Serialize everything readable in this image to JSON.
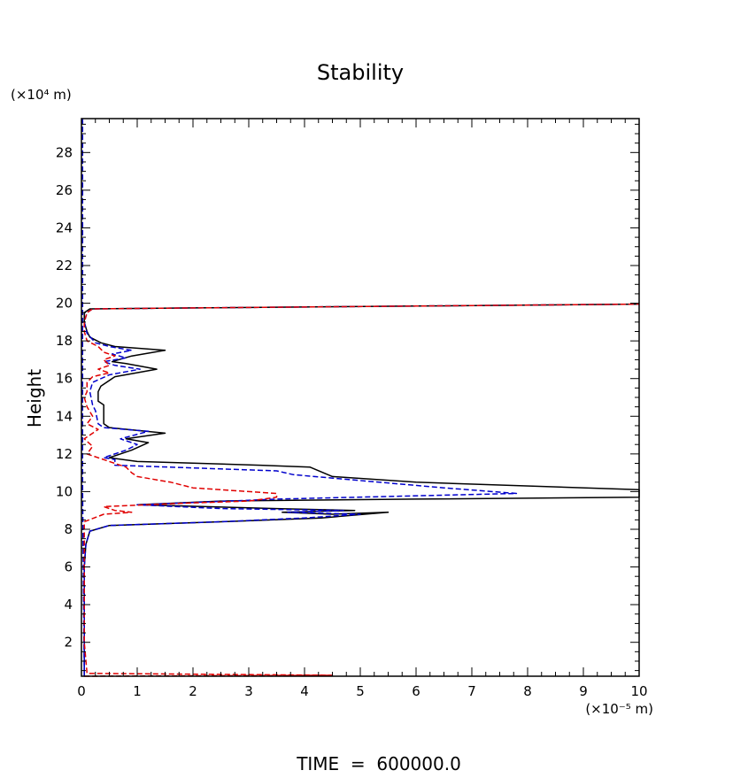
{
  "chart_data": {
    "type": "line",
    "title": "Stability",
    "xlabel": "(×10⁻⁵ m)",
    "ylabel": "Height",
    "y_unit_label": "(×10⁴ m)",
    "footer": "TIME  =  600000.0",
    "xlim": [
      0,
      10
    ],
    "ylim": [
      0.2,
      29.8
    ],
    "xticks": [
      0,
      1,
      2,
      3,
      4,
      5,
      6,
      7,
      8,
      9,
      10
    ],
    "yticks": [
      2,
      4,
      6,
      8,
      10,
      12,
      14,
      16,
      18,
      20,
      22,
      24,
      26,
      28
    ],
    "grid": false,
    "colors": {
      "black": "#000000",
      "blue": "#0000cc",
      "red": "#e00000"
    },
    "series": [
      {
        "color": "black",
        "dash": "solid",
        "points": [
          [
            0.05,
            0.2
          ],
          [
            0.05,
            3
          ],
          [
            0.05,
            6
          ],
          [
            0.08,
            7.2
          ],
          [
            0.15,
            7.9
          ],
          [
            0.5,
            8.2
          ],
          [
            2.5,
            8.4
          ],
          [
            4.3,
            8.6
          ],
          [
            5.5,
            8.9
          ],
          [
            4.5,
            8.8
          ],
          [
            3.6,
            8.9
          ],
          [
            4.9,
            9.0
          ],
          [
            3.5,
            9.1
          ],
          [
            1.0,
            9.3
          ],
          [
            2.5,
            9.5
          ],
          [
            6.0,
            9.6
          ],
          [
            10.0,
            9.7
          ],
          [
            10.0,
            10.1
          ],
          [
            6.0,
            10.5
          ],
          [
            4.5,
            10.8
          ],
          [
            4.1,
            11.3
          ],
          [
            3.2,
            11.4
          ],
          [
            1.0,
            11.6
          ],
          [
            0.5,
            11.8
          ],
          [
            0.9,
            12.2
          ],
          [
            1.2,
            12.6
          ],
          [
            0.8,
            12.8
          ],
          [
            1.5,
            13.1
          ],
          [
            0.5,
            13.4
          ],
          [
            0.4,
            13.6
          ],
          [
            0.4,
            14.3
          ],
          [
            0.4,
            14.6
          ],
          [
            0.3,
            14.8
          ],
          [
            0.3,
            15.3
          ],
          [
            0.35,
            15.6
          ],
          [
            0.6,
            16.1
          ],
          [
            1.35,
            16.5
          ],
          [
            0.8,
            16.8
          ],
          [
            0.55,
            16.9
          ],
          [
            0.9,
            17.2
          ],
          [
            1.5,
            17.5
          ],
          [
            0.6,
            17.7
          ],
          [
            0.35,
            17.9
          ],
          [
            0.15,
            18.2
          ],
          [
            0.1,
            18.5
          ],
          [
            0.05,
            19.0
          ],
          [
            0.05,
            19.5
          ],
          [
            0.15,
            19.7
          ],
          [
            2.0,
            19.75
          ],
          [
            6.0,
            19.85
          ],
          [
            10.0,
            19.95
          ]
        ]
      },
      {
        "color": "blue",
        "dash": "dashed",
        "points": [
          [
            0.02,
            29.8
          ],
          [
            0.02,
            20.5
          ],
          [
            0.02,
            10
          ],
          [
            0.05,
            0.2
          ],
          [
            0.05,
            3
          ],
          [
            0.05,
            6
          ],
          [
            0.08,
            7.2
          ],
          [
            0.15,
            7.9
          ],
          [
            0.5,
            8.2
          ],
          [
            2.5,
            8.4
          ],
          [
            4.0,
            8.6
          ],
          [
            5.0,
            8.8
          ],
          [
            3.7,
            8.9
          ],
          [
            4.7,
            9.0
          ],
          [
            2.5,
            9.1
          ],
          [
            1.0,
            9.3
          ],
          [
            3.5,
            9.6
          ],
          [
            7.8,
            9.9
          ],
          [
            6.5,
            10.2
          ],
          [
            3.8,
            10.9
          ],
          [
            3.5,
            11.1
          ],
          [
            0.6,
            11.4
          ],
          [
            0.6,
            11.7
          ],
          [
            0.4,
            11.8
          ],
          [
            0.8,
            12.2
          ],
          [
            1.0,
            12.5
          ],
          [
            0.7,
            12.8
          ],
          [
            1.2,
            13.2
          ],
          [
            0.4,
            13.4
          ],
          [
            0.3,
            13.6
          ],
          [
            0.25,
            14.3
          ],
          [
            0.2,
            14.6
          ],
          [
            0.15,
            15.3
          ],
          [
            0.2,
            15.8
          ],
          [
            0.5,
            16.2
          ],
          [
            1.05,
            16.5
          ],
          [
            0.6,
            16.7
          ],
          [
            0.4,
            16.9
          ],
          [
            0.8,
            17.1
          ],
          [
            0.55,
            17.3
          ],
          [
            0.9,
            17.5
          ],
          [
            0.5,
            17.7
          ],
          [
            0.25,
            17.9
          ],
          [
            0.1,
            18.4
          ],
          [
            0.05,
            19.0
          ],
          [
            0.1,
            19.5
          ],
          [
            0.2,
            19.7
          ],
          [
            2.0,
            19.75
          ],
          [
            6.0,
            19.85
          ],
          [
            10.0,
            19.95
          ]
        ]
      },
      {
        "color": "red",
        "dash": "dashed",
        "points": [
          [
            0.05,
            0.2
          ],
          [
            4.5,
            0.25
          ],
          [
            0.1,
            0.35
          ],
          [
            0.05,
            2
          ],
          [
            0.05,
            5
          ],
          [
            0.05,
            7
          ],
          [
            0.05,
            8.4
          ],
          [
            0.4,
            8.8
          ],
          [
            0.9,
            8.9
          ],
          [
            0.6,
            9.0
          ],
          [
            0.4,
            9.2
          ],
          [
            2.0,
            9.4
          ],
          [
            3.0,
            9.5
          ],
          [
            3.5,
            9.7
          ],
          [
            3.5,
            9.9
          ],
          [
            2.0,
            10.2
          ],
          [
            1.6,
            10.5
          ],
          [
            1.0,
            10.8
          ],
          [
            0.9,
            11.0
          ],
          [
            0.8,
            11.3
          ],
          [
            0.5,
            11.6
          ],
          [
            0.1,
            12.0
          ],
          [
            0.2,
            12.4
          ],
          [
            0.05,
            12.8
          ],
          [
            0.3,
            13.3
          ],
          [
            0.1,
            13.6
          ],
          [
            0.2,
            14.0
          ],
          [
            0.1,
            14.5
          ],
          [
            0.05,
            15.0
          ],
          [
            0.1,
            15.3
          ],
          [
            0.1,
            15.8
          ],
          [
            0.2,
            16.1
          ],
          [
            0.5,
            16.3
          ],
          [
            0.3,
            16.5
          ],
          [
            0.5,
            16.7
          ],
          [
            0.4,
            17.0
          ],
          [
            0.6,
            17.2
          ],
          [
            0.4,
            17.4
          ],
          [
            0.3,
            17.7
          ],
          [
            0.1,
            18.0
          ],
          [
            0.05,
            18.5
          ],
          [
            0.05,
            19.0
          ],
          [
            0.1,
            19.5
          ],
          [
            0.2,
            19.7
          ],
          [
            2.0,
            19.75
          ],
          [
            6.0,
            19.85
          ],
          [
            10.0,
            19.95
          ]
        ]
      }
    ]
  }
}
